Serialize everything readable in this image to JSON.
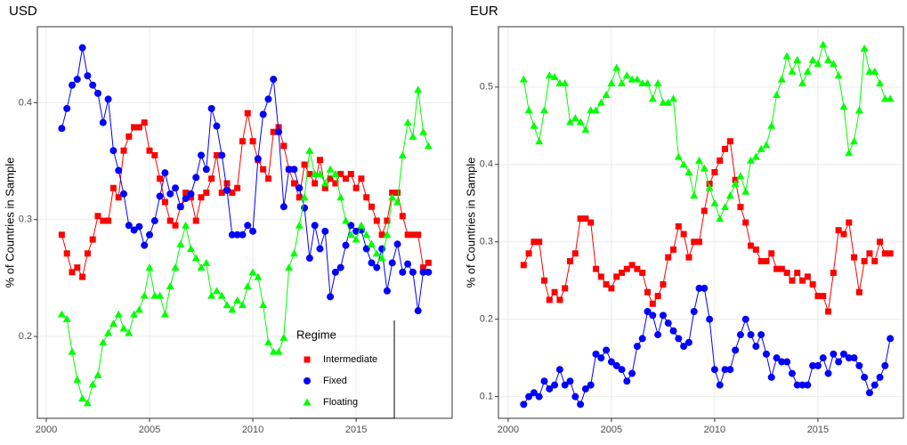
{
  "chart_data": [
    {
      "type": "line",
      "title": "USD",
      "y_label": "% of Countries in Sample",
      "legend": "bottom-right",
      "legend_title": "Regime",
      "grid": true,
      "x": [
        2000.75,
        2001,
        2001.25,
        2001.5,
        2001.75,
        2002,
        2002.25,
        2002.5,
        2002.75,
        2003,
        2003.25,
        2003.5,
        2003.75,
        2004,
        2004.25,
        2004.5,
        2004.75,
        2005,
        2005.25,
        2005.5,
        2005.75,
        2006,
        2006.25,
        2006.5,
        2006.75,
        2007,
        2007.25,
        2007.5,
        2007.75,
        2008,
        2008.25,
        2008.5,
        2008.75,
        2009,
        2009.25,
        2009.5,
        2009.75,
        2010,
        2010.25,
        2010.5,
        2010.75,
        2011,
        2011.25,
        2011.5,
        2011.75,
        2012,
        2012.25,
        2012.5,
        2012.75,
        2013,
        2013.25,
        2013.5,
        2013.75,
        2014,
        2014.25,
        2014.5,
        2014.75,
        2015,
        2015.25,
        2015.5,
        2015.75,
        2016,
        2016.25,
        2016.5,
        2016.75,
        2017,
        2017.25,
        2017.5,
        2017.75,
        2018,
        2018.25,
        2018.5
      ],
      "xlim": [
        1999.57,
        2019.65
      ],
      "xticks": [
        2000,
        2005,
        2010,
        2015
      ],
      "ylim": [
        0.13,
        0.465
      ],
      "yticks": [
        0.2,
        0.3,
        0.4
      ],
      "series": [
        {
          "name": "Intermediate",
          "color": "#ff0000",
          "marker": "square",
          "values": [
            0.287,
            0.271,
            0.255,
            0.259,
            0.251,
            0.271,
            0.283,
            0.303,
            0.299,
            0.299,
            0.327,
            0.319,
            0.359,
            0.371,
            0.379,
            0.379,
            0.383,
            0.359,
            0.355,
            0.335,
            0.315,
            0.299,
            0.295,
            0.311,
            0.323,
            0.319,
            0.299,
            0.319,
            0.323,
            0.335,
            0.355,
            0.323,
            0.331,
            0.323,
            0.327,
            0.367,
            0.391,
            0.367,
            0.351,
            0.343,
            0.335,
            0.375,
            0.379,
            0.363,
            0.343,
            0.331,
            0.319,
            0.347,
            0.339,
            0.331,
            0.351,
            0.327,
            0.335,
            0.331,
            0.339,
            0.335,
            0.339,
            0.327,
            0.335,
            0.319,
            0.311,
            0.299,
            0.287,
            0.299,
            0.323,
            0.323,
            0.303,
            0.287,
            0.287,
            0.287,
            0.259,
            0.263
          ]
        },
        {
          "name": "Fixed",
          "color": "#0000ff",
          "marker": "circle",
          "values": [
            0.378,
            0.395,
            0.415,
            0.42,
            0.447,
            0.423,
            0.415,
            0.408,
            0.383,
            0.403,
            0.359,
            0.342,
            0.322,
            0.295,
            0.291,
            0.294,
            0.278,
            0.287,
            0.299,
            0.32,
            0.34,
            0.322,
            0.327,
            0.311,
            0.318,
            0.322,
            0.336,
            0.355,
            0.343,
            0.395,
            0.38,
            0.355,
            0.325,
            0.287,
            0.287,
            0.287,
            0.295,
            0.29,
            0.352,
            0.39,
            0.403,
            0.42,
            0.375,
            0.311,
            0.343,
            0.343,
            0.327,
            0.31,
            0.267,
            0.295,
            0.275,
            0.29,
            0.234,
            0.255,
            0.259,
            0.278,
            0.295,
            0.29,
            0.291,
            0.275,
            0.263,
            0.259,
            0.275,
            0.239,
            0.263,
            0.279,
            0.255,
            0.262,
            0.255,
            0.222,
            0.255,
            0.255
          ]
        },
        {
          "name": "Floating",
          "color": "#00ff00",
          "marker": "triangle",
          "values": [
            0.219,
            0.215,
            0.187,
            0.163,
            0.147,
            0.143,
            0.159,
            0.167,
            0.195,
            0.203,
            0.211,
            0.219,
            0.207,
            0.203,
            0.219,
            0.223,
            0.235,
            0.259,
            0.235,
            0.235,
            0.219,
            0.243,
            0.259,
            0.279,
            0.295,
            0.275,
            0.267,
            0.259,
            0.263,
            0.235,
            0.239,
            0.235,
            0.227,
            0.223,
            0.231,
            0.227,
            0.243,
            0.255,
            0.251,
            0.227,
            0.195,
            0.187,
            0.187,
            0.199,
            0.259,
            0.271,
            0.295,
            0.319,
            0.359,
            0.339,
            0.339,
            0.331,
            0.343,
            0.339,
            0.319,
            0.299,
            0.287,
            0.283,
            0.295,
            0.287,
            0.279,
            0.271,
            0.267,
            0.287,
            0.319,
            0.315,
            0.355,
            0.383,
            0.371,
            0.411,
            0.375,
            0.363
          ]
        }
      ]
    },
    {
      "type": "line",
      "title": "EUR",
      "y_label": "% of Countries in Sample",
      "grid": true,
      "x": [
        2000.75,
        2001,
        2001.25,
        2001.5,
        2001.75,
        2002,
        2002.25,
        2002.5,
        2002.75,
        2003,
        2003.25,
        2003.5,
        2003.75,
        2004,
        2004.25,
        2004.5,
        2004.75,
        2005,
        2005.25,
        2005.5,
        2005.75,
        2006,
        2006.25,
        2006.5,
        2006.75,
        2007,
        2007.25,
        2007.5,
        2007.75,
        2008,
        2008.25,
        2008.5,
        2008.75,
        2009,
        2009.25,
        2009.5,
        2009.75,
        2010,
        2010.25,
        2010.5,
        2010.75,
        2011,
        2011.25,
        2011.5,
        2011.75,
        2012,
        2012.25,
        2012.5,
        2012.75,
        2013,
        2013.25,
        2013.5,
        2013.75,
        2014,
        2014.25,
        2014.5,
        2014.75,
        2015,
        2015.25,
        2015.5,
        2015.75,
        2016,
        2016.25,
        2016.5,
        2016.75,
        2017,
        2017.25,
        2017.5,
        2017.75,
        2018,
        2018.25,
        2018.5
      ],
      "xlim": [
        1999.53,
        2019.14
      ],
      "xticks": [
        2000,
        2005,
        2010,
        2015
      ],
      "ylim": [
        0.072,
        0.578
      ],
      "yticks": [
        0.1,
        0.2,
        0.3,
        0.4,
        0.5
      ],
      "series": [
        {
          "name": "Intermediate",
          "color": "#ff0000",
          "marker": "square",
          "values": [
            0.27,
            0.285,
            0.3,
            0.3,
            0.25,
            0.225,
            0.235,
            0.225,
            0.24,
            0.275,
            0.285,
            0.33,
            0.33,
            0.325,
            0.265,
            0.255,
            0.245,
            0.24,
            0.255,
            0.26,
            0.265,
            0.27,
            0.265,
            0.26,
            0.235,
            0.22,
            0.23,
            0.245,
            0.28,
            0.29,
            0.32,
            0.31,
            0.28,
            0.3,
            0.3,
            0.34,
            0.375,
            0.39,
            0.405,
            0.42,
            0.43,
            0.38,
            0.345,
            0.325,
            0.295,
            0.29,
            0.275,
            0.275,
            0.285,
            0.265,
            0.265,
            0.26,
            0.25,
            0.26,
            0.25,
            0.255,
            0.245,
            0.23,
            0.23,
            0.21,
            0.26,
            0.315,
            0.31,
            0.325,
            0.28,
            0.235,
            0.275,
            0.285,
            0.275,
            0.3,
            0.285,
            0.285
          ]
        },
        {
          "name": "Fixed",
          "color": "#0000ff",
          "marker": "circle",
          "values": [
            0.09,
            0.1,
            0.105,
            0.1,
            0.12,
            0.11,
            0.115,
            0.135,
            0.115,
            0.12,
            0.1,
            0.09,
            0.11,
            0.115,
            0.155,
            0.15,
            0.16,
            0.145,
            0.14,
            0.135,
            0.12,
            0.13,
            0.165,
            0.175,
            0.21,
            0.205,
            0.18,
            0.205,
            0.195,
            0.185,
            0.175,
            0.165,
            0.17,
            0.21,
            0.24,
            0.24,
            0.2,
            0.135,
            0.115,
            0.135,
            0.135,
            0.16,
            0.18,
            0.2,
            0.18,
            0.165,
            0.18,
            0.155,
            0.125,
            0.15,
            0.145,
            0.145,
            0.13,
            0.115,
            0.115,
            0.115,
            0.14,
            0.14,
            0.15,
            0.13,
            0.155,
            0.145,
            0.155,
            0.15,
            0.15,
            0.14,
            0.125,
            0.105,
            0.115,
            0.125,
            0.14,
            0.175
          ]
        },
        {
          "name": "Floating",
          "color": "#00ff00",
          "marker": "triangle",
          "values": [
            0.51,
            0.47,
            0.45,
            0.43,
            0.47,
            0.515,
            0.513,
            0.505,
            0.505,
            0.455,
            0.46,
            0.455,
            0.445,
            0.47,
            0.47,
            0.48,
            0.49,
            0.505,
            0.525,
            0.505,
            0.515,
            0.51,
            0.51,
            0.505,
            0.505,
            0.485,
            0.505,
            0.48,
            0.48,
            0.485,
            0.41,
            0.4,
            0.39,
            0.36,
            0.405,
            0.395,
            0.37,
            0.35,
            0.33,
            0.345,
            0.36,
            0.375,
            0.385,
            0.365,
            0.405,
            0.41,
            0.42,
            0.425,
            0.45,
            0.49,
            0.51,
            0.54,
            0.52,
            0.535,
            0.505,
            0.52,
            0.535,
            0.53,
            0.555,
            0.535,
            0.53,
            0.515,
            0.475,
            0.415,
            0.43,
            0.47,
            0.55,
            0.52,
            0.52,
            0.505,
            0.485,
            0.485
          ]
        }
      ]
    }
  ]
}
